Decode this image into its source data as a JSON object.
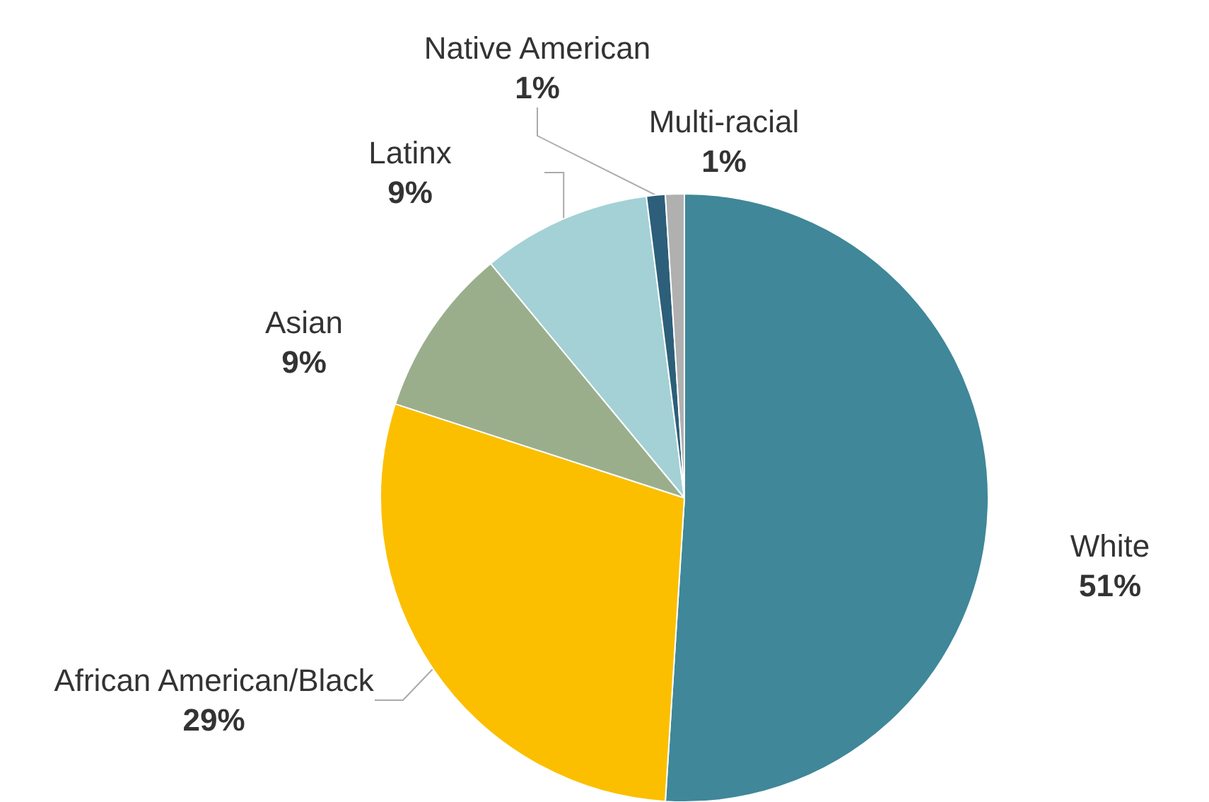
{
  "chart_data": {
    "type": "pie",
    "categories": [
      "White",
      "African American/Black",
      "Asian",
      "Latinx",
      "Native American",
      "Multi-racial"
    ],
    "values": [
      51,
      29,
      9,
      9,
      1,
      1
    ],
    "value_labels": [
      "51%",
      "29%",
      "9%",
      "9%",
      "1%",
      "1%"
    ],
    "colors": [
      "#3f8799",
      "#fbbf00",
      "#9aae8c",
      "#a3d1d5",
      "#2d5f7a",
      "#b0b0b0"
    ],
    "legend": false
  }
}
